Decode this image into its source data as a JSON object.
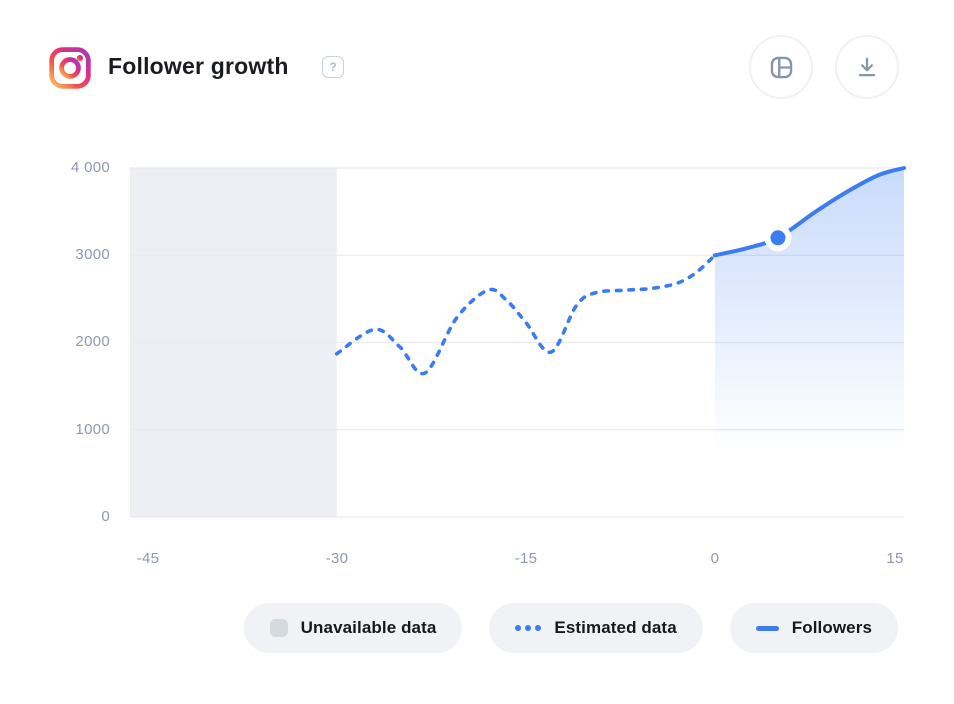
{
  "header": {
    "title": "Follower growth",
    "help_label": "?",
    "source_icon": "instagram-icon",
    "actions": [
      {
        "name": "widget-layout-button",
        "icon": "layout-widget-icon"
      },
      {
        "name": "download-button",
        "icon": "download-icon"
      }
    ]
  },
  "legend": {
    "items": [
      {
        "label": "Unavailable data",
        "swatch": "gray-square",
        "color": "#d5dae1"
      },
      {
        "label": "Estimated data",
        "swatch": "blue-dotted-line",
        "color": "#3b7cf2"
      },
      {
        "label": "Followers",
        "swatch": "blue-solid-line",
        "color": "#3b7cf2"
      }
    ]
  },
  "colors": {
    "accent_blue": "#3b7cf2",
    "unavailable_region": "#edeff4",
    "gridline": "#e9ebf0",
    "axis_label": "#8e99ad",
    "pill_background": "#f0f2f6",
    "title_text": "#1a1c20"
  },
  "chart_data": {
    "type": "line",
    "title": "Follower growth",
    "xlabel": "",
    "ylabel": "",
    "xlim": [
      -46.4,
      15
    ],
    "ylim": [
      0,
      4000
    ],
    "grid": true,
    "legend_position": "bottom",
    "yticks": [
      {
        "value": 4000,
        "label": "4 000"
      },
      {
        "value": 3000,
        "label": "3000"
      },
      {
        "value": 2000,
        "label": "2000"
      },
      {
        "value": 1000,
        "label": "1000"
      },
      {
        "value": 0,
        "label": "0"
      }
    ],
    "xticks": [
      {
        "value": -45,
        "label": "-45"
      },
      {
        "value": -30,
        "label": "-30"
      },
      {
        "value": -15,
        "label": "-15"
      },
      {
        "value": 0,
        "label": "0"
      },
      {
        "value": 15,
        "label": "15"
      }
    ],
    "unavailable_region": {
      "from": -46.4,
      "to": -30
    },
    "series": [
      {
        "name": "Estimated data",
        "style": "dashed",
        "color": "#3b7cf2",
        "points": [
          [
            -30,
            1870
          ],
          [
            -27,
            2150
          ],
          [
            -25,
            1950
          ],
          [
            -23,
            1650
          ],
          [
            -20.5,
            2280
          ],
          [
            -18,
            2600
          ],
          [
            -16.5,
            2480
          ],
          [
            -15,
            2230
          ],
          [
            -13,
            1890
          ],
          [
            -11,
            2420
          ],
          [
            -9.5,
            2570
          ],
          [
            -7,
            2600
          ],
          [
            -5,
            2620
          ],
          [
            -3,
            2680
          ],
          [
            -1.5,
            2800
          ],
          [
            0,
            3000
          ]
        ]
      },
      {
        "name": "Followers",
        "style": "solid",
        "color": "#3b7cf2",
        "area": true,
        "marker": {
          "x": 5,
          "y": 3200
        },
        "points": [
          [
            0,
            3000
          ],
          [
            2.5,
            3080
          ],
          [
            5,
            3200
          ],
          [
            8,
            3500
          ],
          [
            10.5,
            3730
          ],
          [
            13,
            3920
          ],
          [
            15,
            4000
          ]
        ]
      }
    ]
  }
}
